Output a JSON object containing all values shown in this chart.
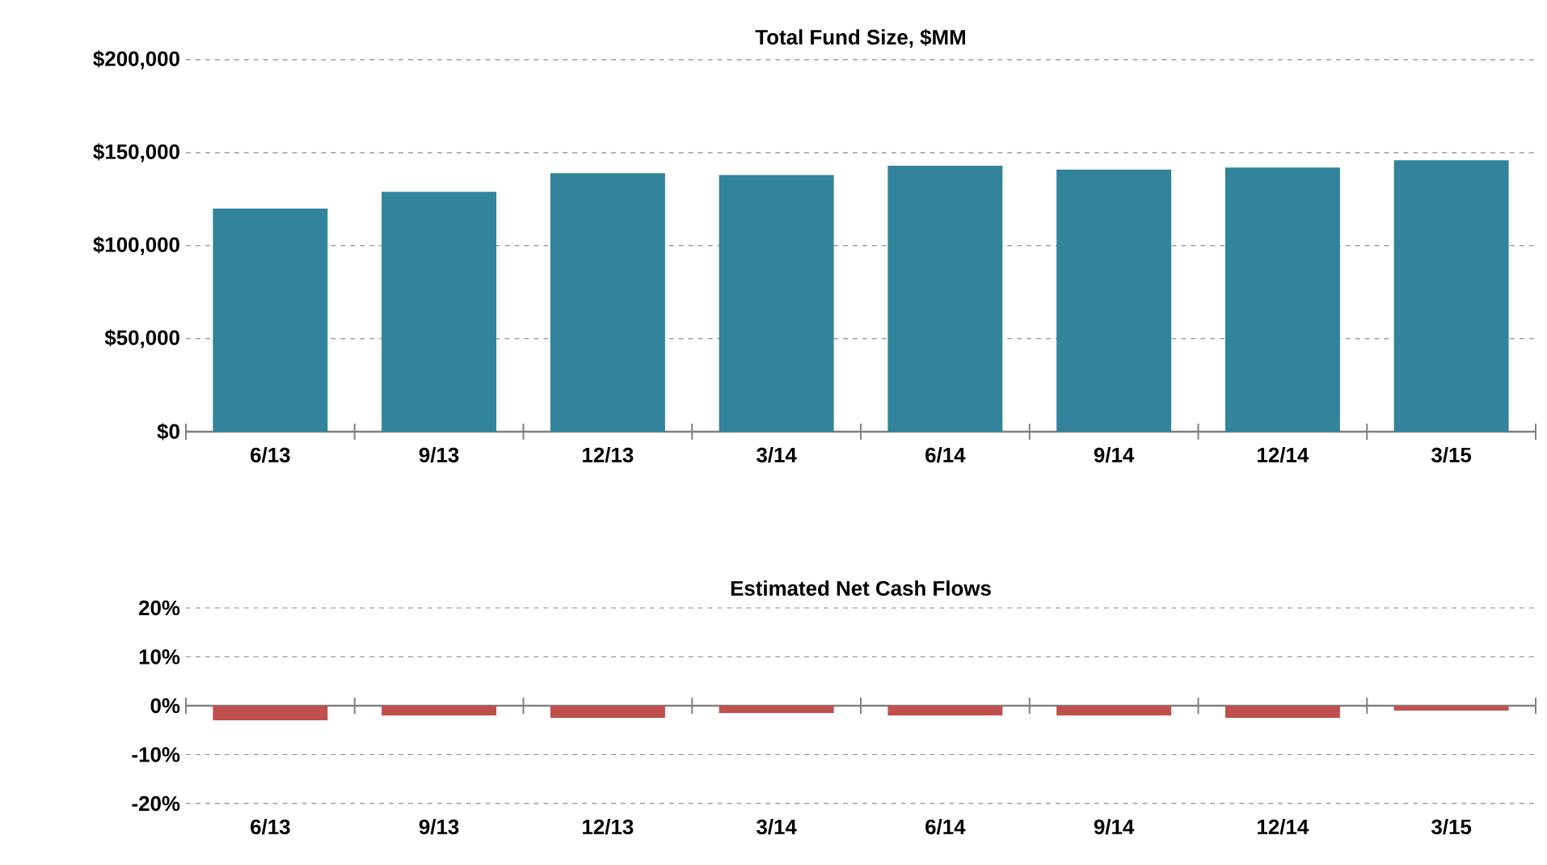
{
  "chart_data": [
    {
      "type": "bar",
      "title": "Total Fund Size, $MM",
      "categories": [
        "6/13",
        "9/13",
        "12/13",
        "3/14",
        "6/14",
        "9/14",
        "12/14",
        "3/15"
      ],
      "values": [
        120000,
        129000,
        139000,
        138000,
        143000,
        141000,
        142000,
        146000
      ],
      "color": "#31849b",
      "ylim": [
        0,
        200000
      ],
      "yticks": [
        {
          "value": 0,
          "label": "$0"
        },
        {
          "value": 50000,
          "label": "$50,000"
        },
        {
          "value": 100000,
          "label": "$100,000"
        },
        {
          "value": 150000,
          "label": "$150,000"
        },
        {
          "value": 200000,
          "label": "$200,000"
        }
      ],
      "grid": "y"
    },
    {
      "type": "bar",
      "title": "Estimated Net Cash Flows",
      "categories": [
        "6/13",
        "9/13",
        "12/13",
        "3/14",
        "6/14",
        "9/14",
        "12/14",
        "3/15"
      ],
      "values": [
        -3,
        -2,
        -2.5,
        -1.5,
        -2,
        -2,
        -2.5,
        -1
      ],
      "color": "#c0504d",
      "ylim": [
        -20,
        20
      ],
      "yticks": [
        {
          "value": -20,
          "label": "-20%"
        },
        {
          "value": -10,
          "label": "-10%"
        },
        {
          "value": 0,
          "label": "0%"
        },
        {
          "value": 10,
          "label": "10%"
        },
        {
          "value": 20,
          "label": "20%"
        }
      ],
      "grid": "y"
    }
  ]
}
